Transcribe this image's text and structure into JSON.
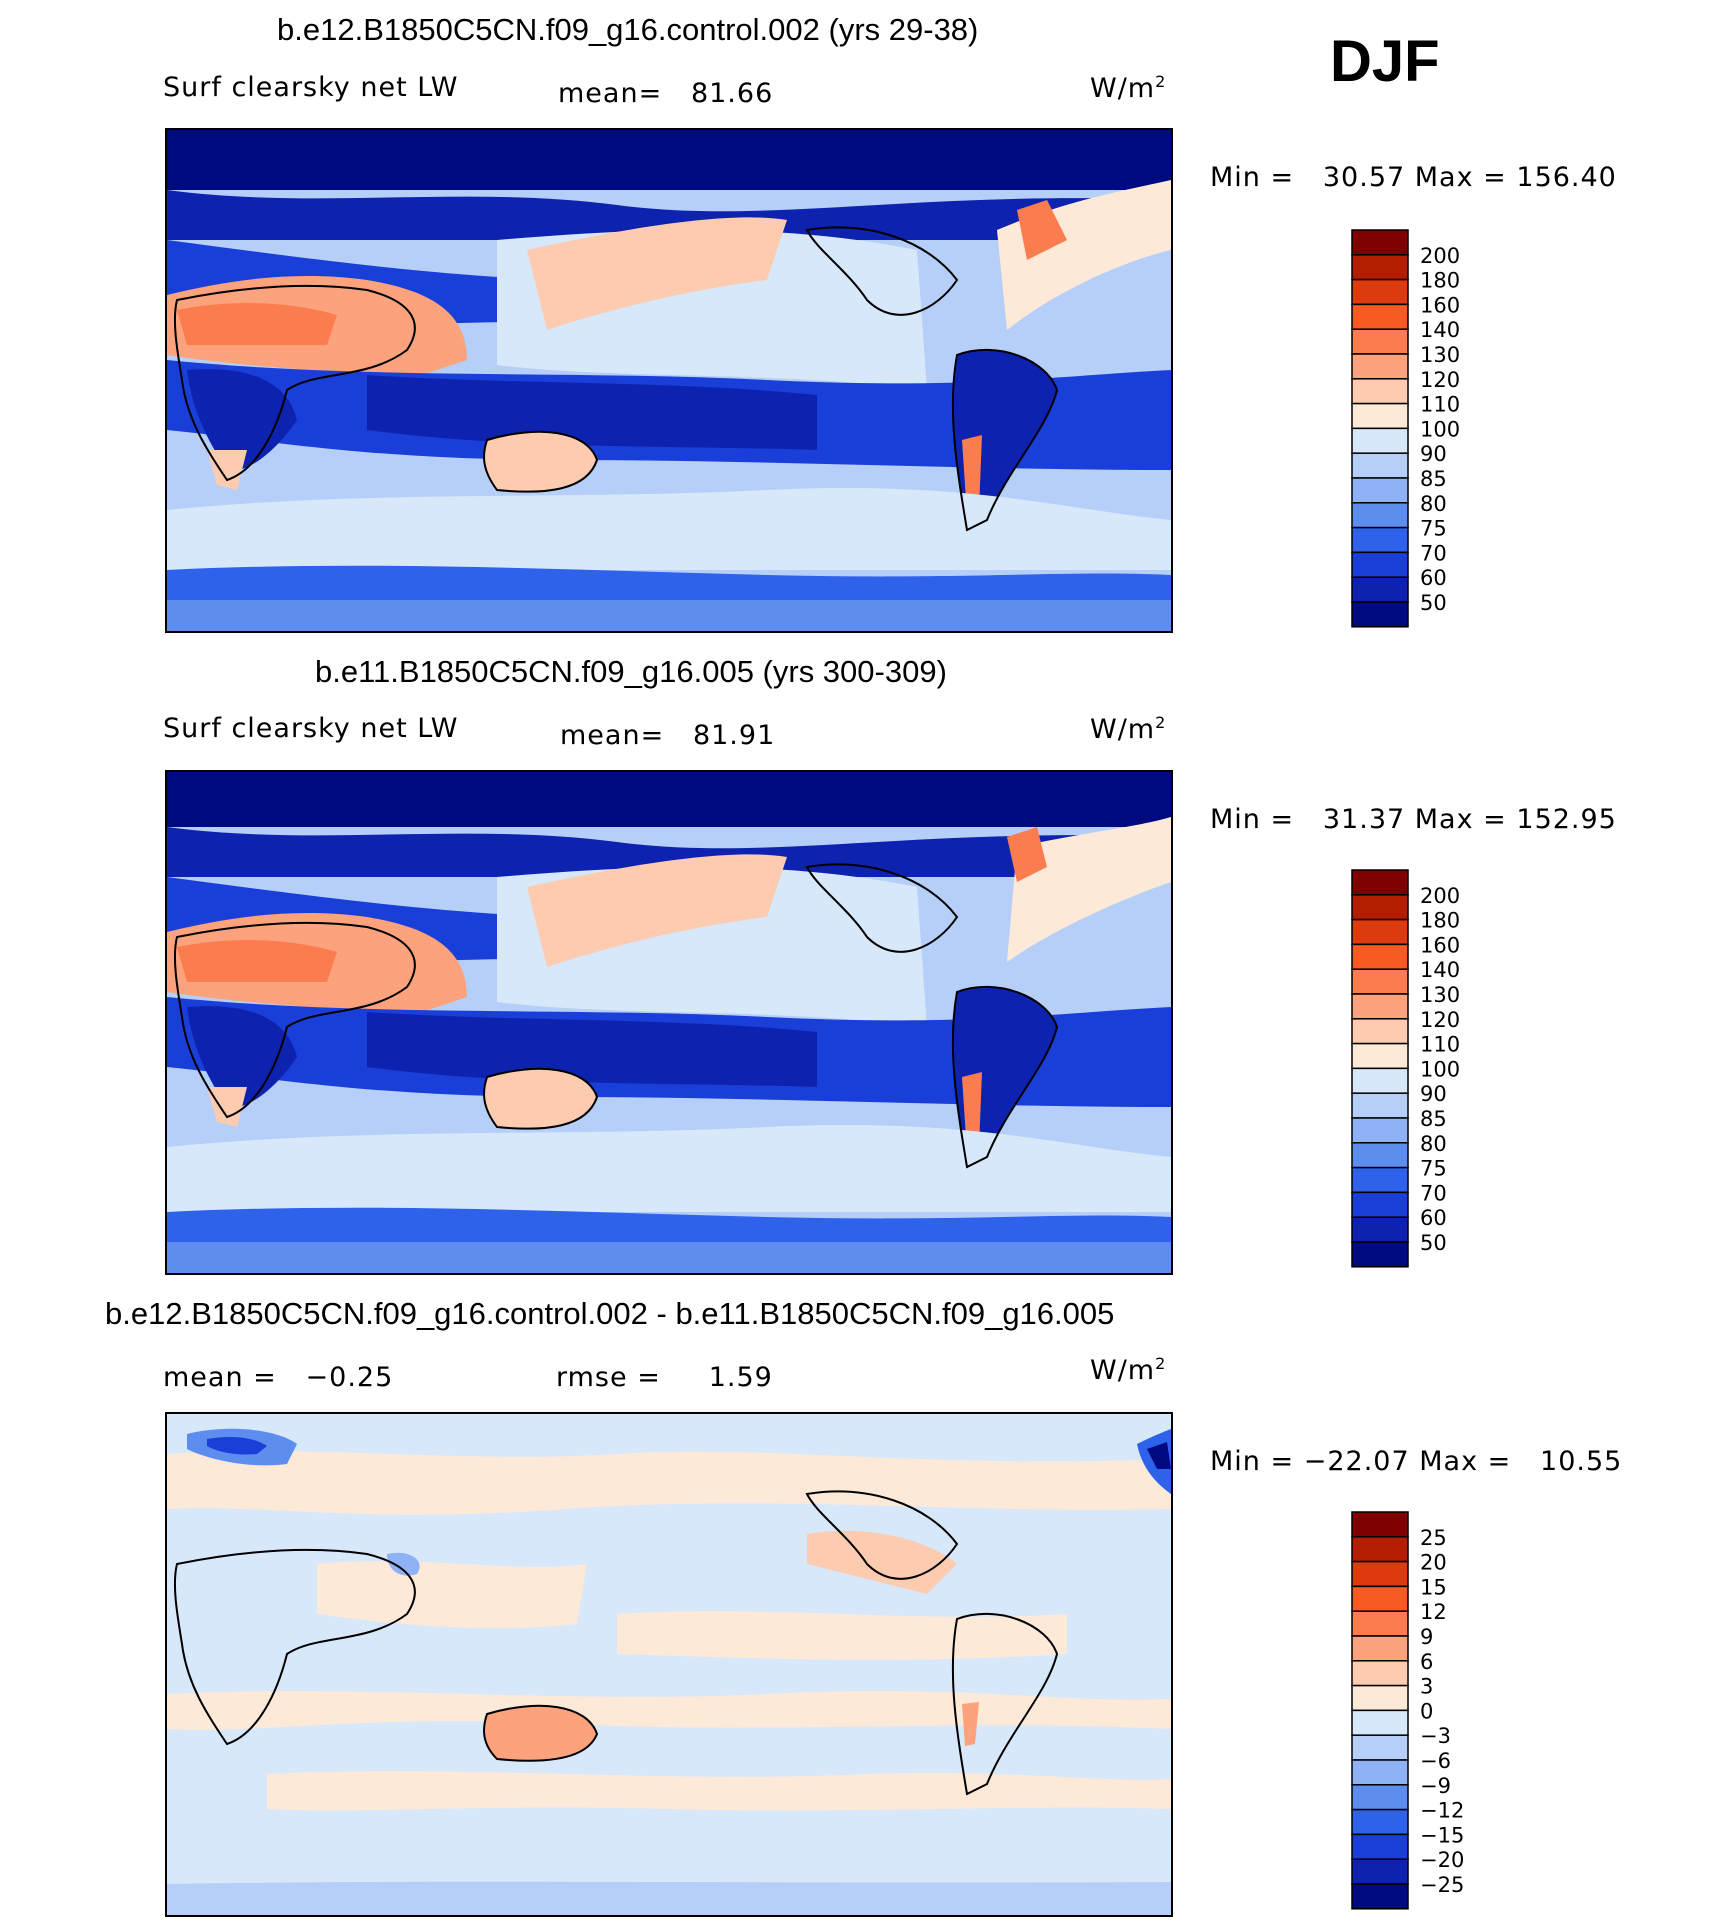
{
  "season": "DJF",
  "panels": [
    {
      "title": "b.e12.B1850C5CN.f09_g16.control.002 (yrs 29-38)",
      "left_label": "Surf clearsky net LW",
      "stat1_label": "mean=",
      "stat1_value": "81.66",
      "units": "W/m",
      "units_exp": "2",
      "min_label": "Min =",
      "min_value": "30.57",
      "max_label": "Max =",
      "max_value": "156.40",
      "colorbar_labels": [
        "200",
        "180",
        "160",
        "140",
        "130",
        "120",
        "110",
        "100",
        "90",
        "85",
        "80",
        "75",
        "70",
        "60",
        "50"
      ]
    },
    {
      "title": "b.e11.B1850C5CN.f09_g16.005 (yrs 300-309)",
      "left_label": "Surf clearsky net LW",
      "stat1_label": "mean=",
      "stat1_value": "81.91",
      "units": "W/m",
      "units_exp": "2",
      "min_label": "Min =",
      "min_value": "31.37",
      "max_label": "Max =",
      "max_value": "152.95",
      "colorbar_labels": [
        "200",
        "180",
        "160",
        "140",
        "130",
        "120",
        "110",
        "100",
        "90",
        "85",
        "80",
        "75",
        "70",
        "60",
        "50"
      ]
    },
    {
      "title": "b.e12.B1850C5CN.f09_g16.control.002 - b.e11.B1850C5CN.f09_g16.005",
      "mean_label": "mean =",
      "mean_value": "−0.25",
      "rmse_label": "rmse =",
      "rmse_value": "1.59",
      "units": "W/m",
      "units_exp": "2",
      "min_label": "Min =",
      "min_value": "−22.07",
      "max_label": "Max =",
      "max_value": "10.55",
      "colorbar_labels": [
        "25",
        "20",
        "15",
        "12",
        "9",
        "6",
        "3",
        "0",
        "−3",
        "−6",
        "−9",
        "−12",
        "−15",
        "−20",
        "−25"
      ]
    }
  ],
  "colors": {
    "scale": [
      "#7f0000",
      "#b31d00",
      "#dd3a0d",
      "#f85a24",
      "#fb7d4f",
      "#fca27c",
      "#fdccb0",
      "#fde9d8",
      "#d8e8fb",
      "#b6cff8",
      "#8fb2f6",
      "#5e8df0",
      "#2f62ea",
      "#1a3fd8",
      "#0d23b0",
      "#000a80"
    ]
  }
}
